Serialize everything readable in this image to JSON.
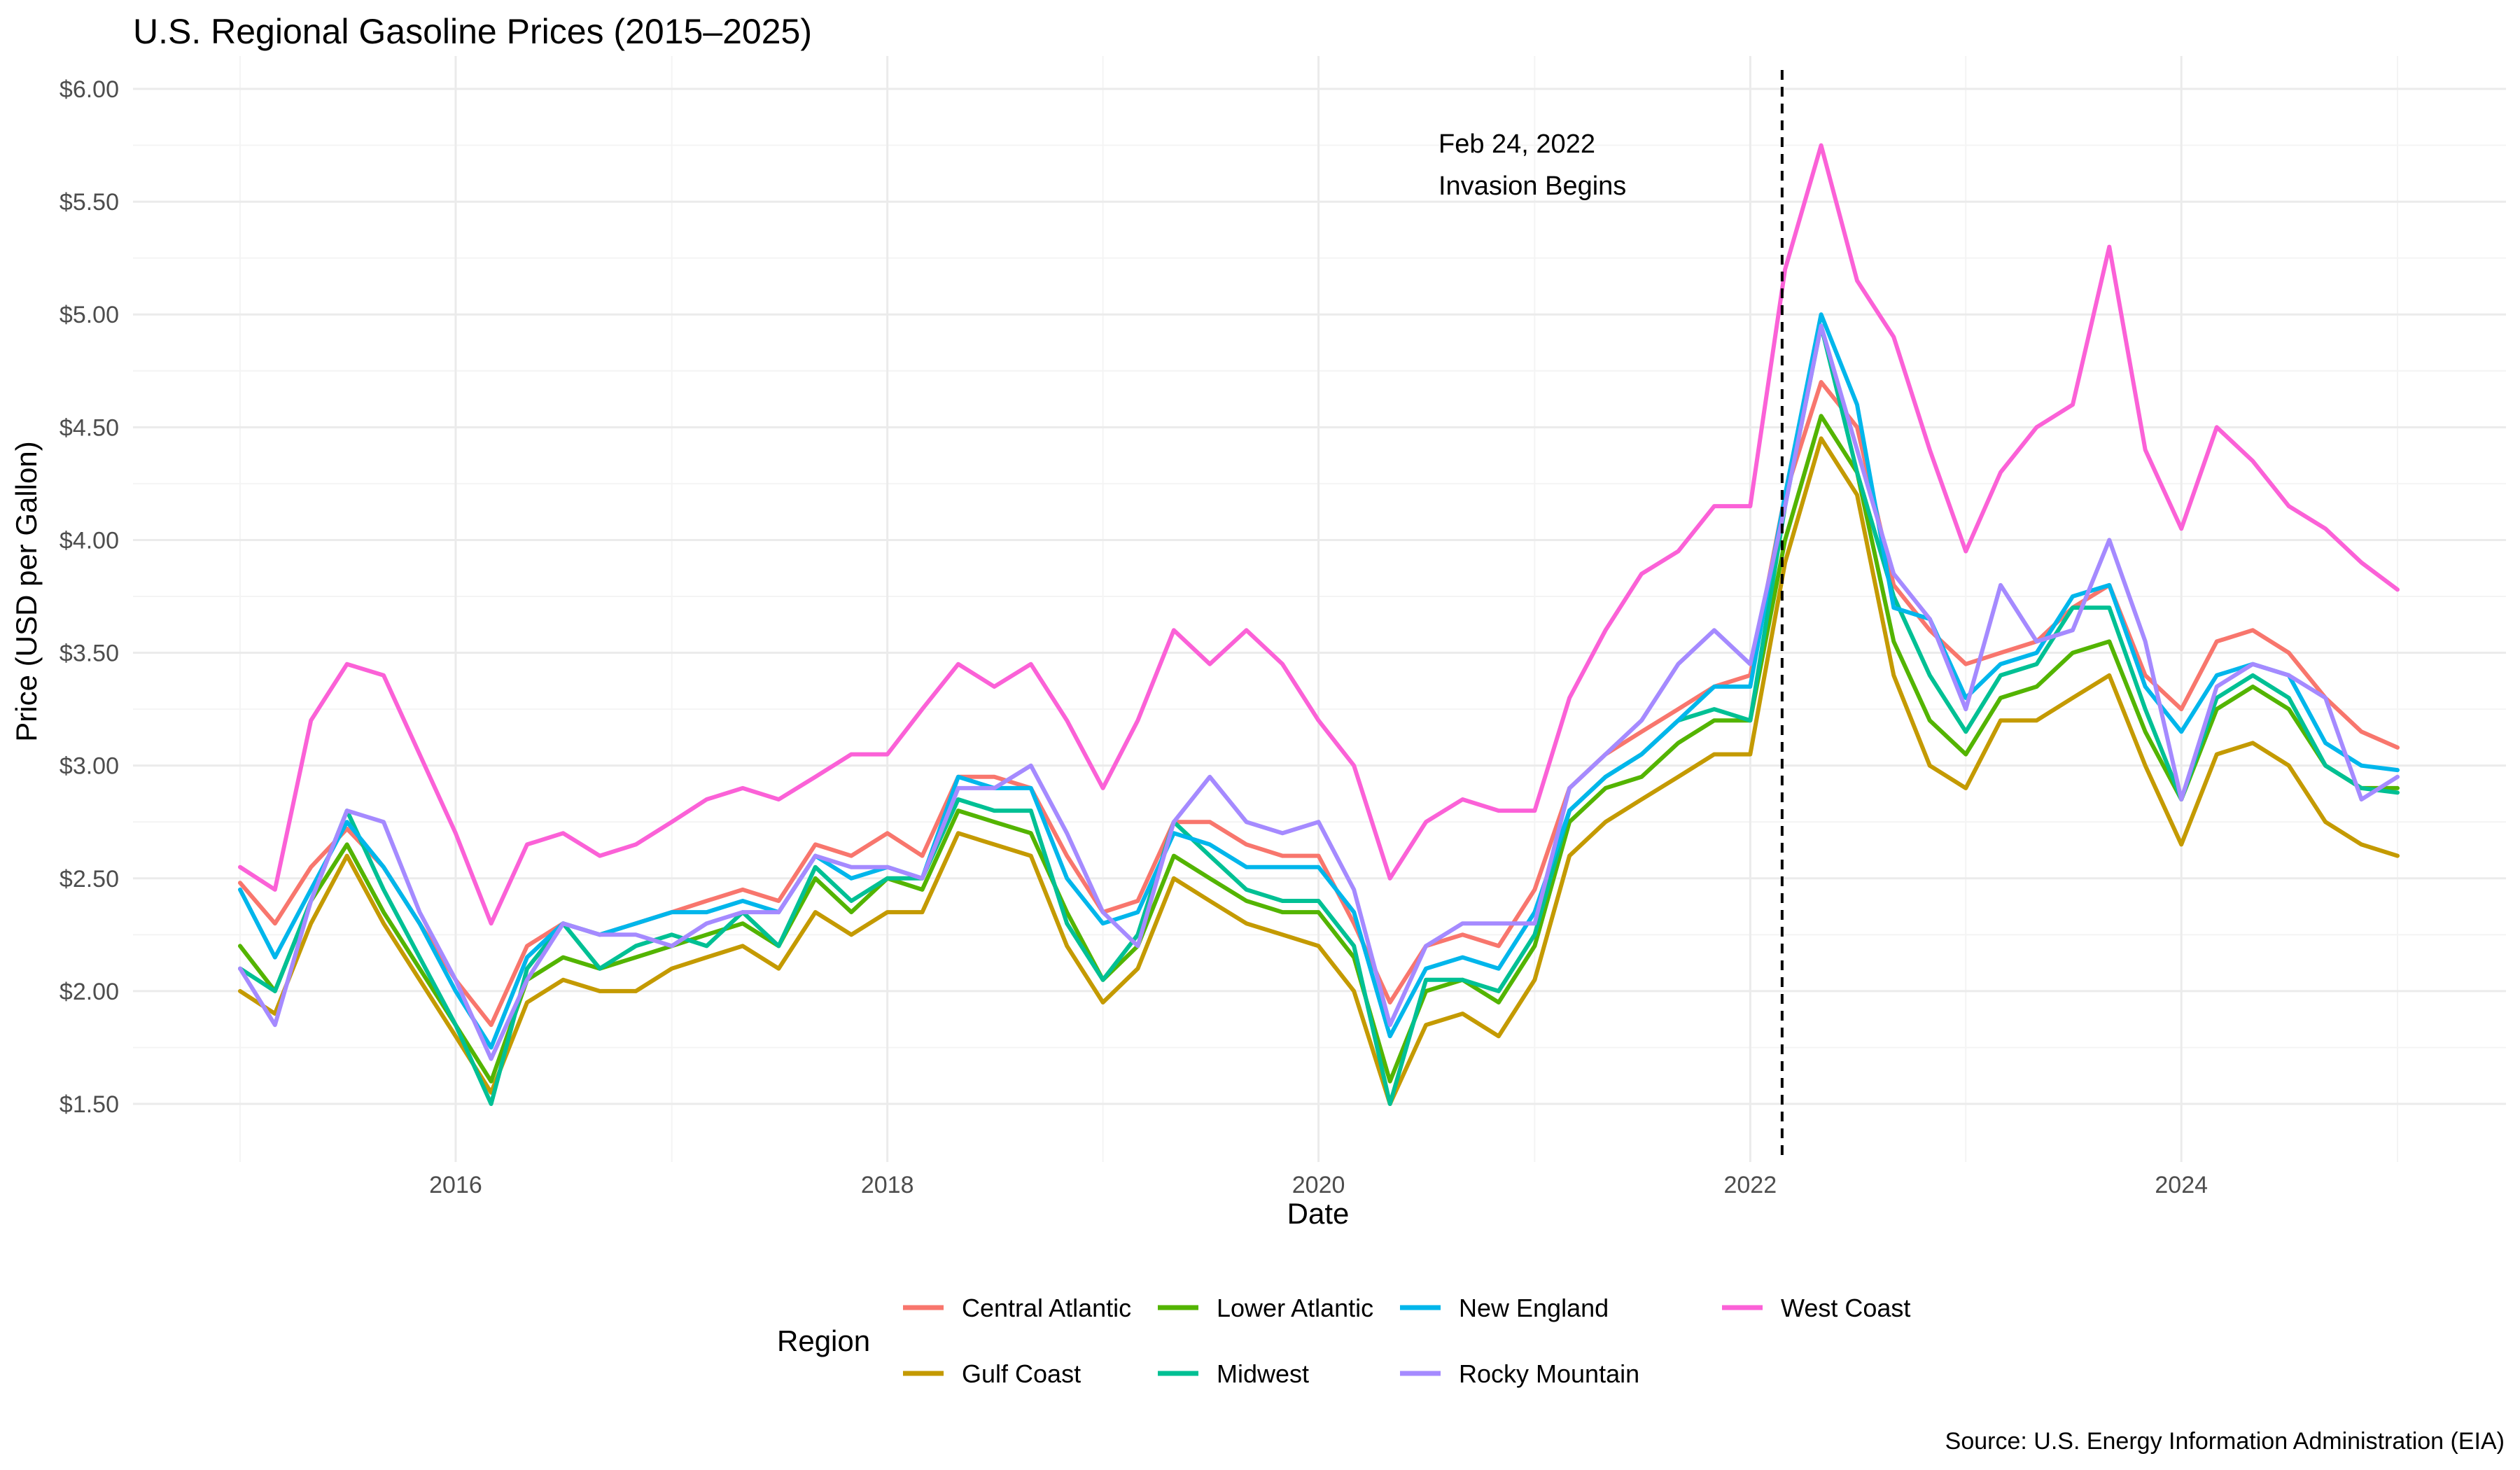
{
  "chart_data": {
    "type": "line",
    "title": "U.S. Regional Gasoline Prices (2015–2025)",
    "xlabel": "Date",
    "ylabel": "Price (USD per Gallon)",
    "caption": "Source: U.S. Energy Information Administration (EIA)",
    "x_range": [
      "2015-01-01",
      "2025-01-01"
    ],
    "ylim": [
      1.5,
      6.0
    ],
    "x_ticks": [
      "2016",
      "2018",
      "2020",
      "2022",
      "2024"
    ],
    "y_ticks": [
      "$1.50",
      "$2.00",
      "$2.50",
      "$3.00",
      "$3.50",
      "$4.00",
      "$4.50",
      "$5.00",
      "$5.50",
      "$6.00"
    ],
    "grid": true,
    "legend": {
      "title": "Region",
      "position": "bottom"
    },
    "annotation": {
      "date": "2022-02-24",
      "line1": "Feb 24, 2022",
      "line2": "Invasion Begins",
      "style": "dashed"
    },
    "x": [
      "2015-01",
      "2015-03",
      "2015-05",
      "2015-07",
      "2015-09",
      "2015-11",
      "2016-01",
      "2016-03",
      "2016-05",
      "2016-07",
      "2016-09",
      "2016-11",
      "2017-01",
      "2017-03",
      "2017-05",
      "2017-07",
      "2017-09",
      "2017-11",
      "2018-01",
      "2018-03",
      "2018-05",
      "2018-07",
      "2018-09",
      "2018-11",
      "2019-01",
      "2019-03",
      "2019-05",
      "2019-07",
      "2019-09",
      "2019-11",
      "2020-01",
      "2020-03",
      "2020-05",
      "2020-07",
      "2020-09",
      "2020-11",
      "2021-01",
      "2021-03",
      "2021-05",
      "2021-07",
      "2021-09",
      "2021-11",
      "2022-01",
      "2022-03",
      "2022-05",
      "2022-07",
      "2022-09",
      "2022-11",
      "2023-01",
      "2023-03",
      "2023-05",
      "2023-07",
      "2023-09",
      "2023-11",
      "2024-01",
      "2024-03",
      "2024-05",
      "2024-07",
      "2024-09",
      "2024-11",
      "2025-01"
    ],
    "series": [
      {
        "name": "Central Atlantic",
        "color": "#F8766D",
        "values": [
          2.48,
          2.3,
          2.55,
          2.72,
          2.55,
          2.3,
          2.05,
          1.85,
          2.2,
          2.3,
          2.25,
          2.3,
          2.35,
          2.4,
          2.45,
          2.4,
          2.65,
          2.6,
          2.7,
          2.6,
          2.95,
          2.95,
          2.9,
          2.6,
          2.35,
          2.4,
          2.75,
          2.75,
          2.65,
          2.6,
          2.6,
          2.3,
          1.95,
          2.2,
          2.25,
          2.2,
          2.45,
          2.9,
          3.05,
          3.15,
          3.25,
          3.35,
          3.4,
          4.2,
          4.7,
          4.5,
          3.8,
          3.6,
          3.45,
          3.5,
          3.55,
          3.7,
          3.8,
          3.4,
          3.25,
          3.55,
          3.6,
          3.5,
          3.3,
          3.15,
          3.08
        ]
      },
      {
        "name": "Gulf Coast",
        "color": "#C49A00",
        "values": [
          2.0,
          1.9,
          2.3,
          2.6,
          2.3,
          2.05,
          1.8,
          1.55,
          1.95,
          2.05,
          2.0,
          2.0,
          2.1,
          2.15,
          2.2,
          2.1,
          2.35,
          2.25,
          2.35,
          2.35,
          2.7,
          2.65,
          2.6,
          2.2,
          1.95,
          2.1,
          2.5,
          2.4,
          2.3,
          2.25,
          2.2,
          2.0,
          1.5,
          1.85,
          1.9,
          1.8,
          2.05,
          2.6,
          2.75,
          2.85,
          2.95,
          3.05,
          3.05,
          3.9,
          4.45,
          4.2,
          3.4,
          3.0,
          2.9,
          3.2,
          3.2,
          3.3,
          3.4,
          3.0,
          2.65,
          3.05,
          3.1,
          3.0,
          2.75,
          2.65,
          2.6
        ]
      },
      {
        "name": "Lower Atlantic",
        "color": "#53B400",
        "values": [
          2.2,
          2.0,
          2.4,
          2.65,
          2.35,
          2.1,
          1.85,
          1.6,
          2.05,
          2.15,
          2.1,
          2.15,
          2.2,
          2.25,
          2.3,
          2.2,
          2.5,
          2.35,
          2.5,
          2.45,
          2.8,
          2.75,
          2.7,
          2.35,
          2.05,
          2.2,
          2.6,
          2.5,
          2.4,
          2.35,
          2.35,
          2.15,
          1.6,
          2.0,
          2.05,
          1.95,
          2.2,
          2.75,
          2.9,
          2.95,
          3.1,
          3.2,
          3.2,
          4.0,
          4.55,
          4.3,
          3.55,
          3.2,
          3.05,
          3.3,
          3.35,
          3.5,
          3.55,
          3.15,
          2.85,
          3.25,
          3.35,
          3.25,
          3.0,
          2.9,
          2.9
        ]
      },
      {
        "name": "Midwest",
        "color": "#00C094",
        "values": [
          2.1,
          2.0,
          2.4,
          2.8,
          2.45,
          2.15,
          1.85,
          1.5,
          2.1,
          2.3,
          2.1,
          2.2,
          2.25,
          2.2,
          2.35,
          2.2,
          2.55,
          2.4,
          2.5,
          2.5,
          2.85,
          2.8,
          2.8,
          2.3,
          2.05,
          2.25,
          2.75,
          2.6,
          2.45,
          2.4,
          2.4,
          2.2,
          1.5,
          2.05,
          2.05,
          2.0,
          2.25,
          2.8,
          2.95,
          3.05,
          3.2,
          3.25,
          3.2,
          4.15,
          4.95,
          4.3,
          3.75,
          3.4,
          3.15,
          3.4,
          3.45,
          3.7,
          3.7,
          3.25,
          2.85,
          3.3,
          3.4,
          3.3,
          3.0,
          2.9,
          2.88
        ]
      },
      {
        "name": "New England",
        "color": "#00B6EB",
        "values": [
          2.45,
          2.15,
          2.45,
          2.75,
          2.55,
          2.3,
          2.0,
          1.75,
          2.15,
          2.3,
          2.25,
          2.3,
          2.35,
          2.35,
          2.4,
          2.35,
          2.6,
          2.5,
          2.55,
          2.5,
          2.95,
          2.9,
          2.9,
          2.5,
          2.3,
          2.35,
          2.7,
          2.65,
          2.55,
          2.55,
          2.55,
          2.35,
          1.8,
          2.1,
          2.15,
          2.1,
          2.35,
          2.8,
          2.95,
          3.05,
          3.2,
          3.35,
          3.35,
          4.2,
          5.0,
          4.6,
          3.7,
          3.65,
          3.3,
          3.45,
          3.5,
          3.75,
          3.8,
          3.35,
          3.15,
          3.4,
          3.45,
          3.4,
          3.1,
          3.0,
          2.98
        ]
      },
      {
        "name": "Rocky Mountain",
        "color": "#A58AFF",
        "values": [
          2.1,
          1.85,
          2.4,
          2.8,
          2.75,
          2.35,
          2.05,
          1.7,
          2.05,
          2.3,
          2.25,
          2.25,
          2.2,
          2.3,
          2.35,
          2.35,
          2.6,
          2.55,
          2.55,
          2.5,
          2.9,
          2.9,
          3.0,
          2.7,
          2.35,
          2.2,
          2.75,
          2.95,
          2.75,
          2.7,
          2.75,
          2.45,
          1.85,
          2.2,
          2.3,
          2.3,
          2.3,
          2.9,
          3.05,
          3.2,
          3.45,
          3.6,
          3.45,
          4.15,
          4.95,
          4.4,
          3.85,
          3.65,
          3.25,
          3.8,
          3.55,
          3.6,
          4.0,
          3.55,
          2.85,
          3.35,
          3.45,
          3.4,
          3.3,
          2.85,
          2.95
        ]
      },
      {
        "name": "West Coast",
        "color": "#FB61D7",
        "values": [
          2.55,
          2.45,
          3.2,
          3.45,
          3.4,
          3.05,
          2.7,
          2.3,
          2.65,
          2.7,
          2.6,
          2.65,
          2.75,
          2.85,
          2.9,
          2.85,
          2.95,
          3.05,
          3.05,
          3.25,
          3.45,
          3.35,
          3.45,
          3.2,
          2.9,
          3.2,
          3.6,
          3.45,
          3.6,
          3.45,
          3.2,
          3.0,
          2.5,
          2.75,
          2.85,
          2.8,
          2.8,
          3.3,
          3.6,
          3.85,
          3.95,
          4.15,
          4.15,
          5.2,
          5.75,
          5.15,
          4.9,
          4.4,
          3.95,
          4.3,
          4.5,
          4.6,
          5.3,
          4.4,
          4.05,
          4.5,
          4.35,
          4.15,
          4.05,
          3.9,
          3.78
        ]
      }
    ]
  }
}
